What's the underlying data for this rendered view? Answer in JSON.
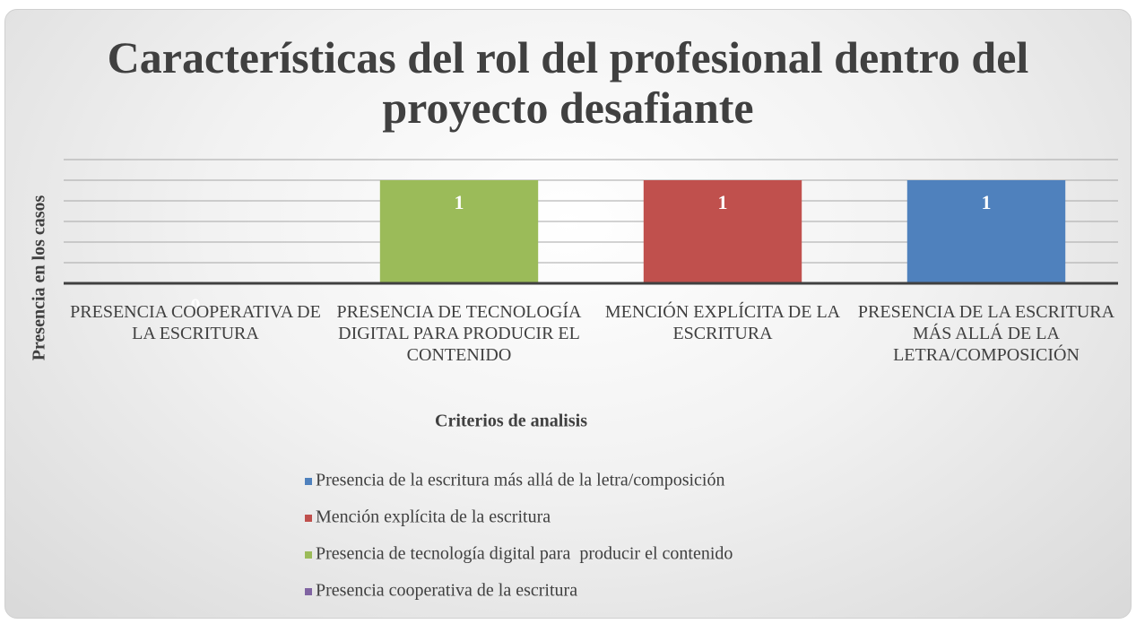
{
  "chart_data": {
    "type": "bar",
    "title": "Características del rol del profesional dentro del proyecto desafiante",
    "x_label": "Criterios de analisis",
    "y_label": "Presencia en los casos",
    "categories": [
      "PRESENCIA COOPERATIVA DE LA ESCRITURA",
      "PRESENCIA DE TECNOLOGÍA DIGITAL PARA  PRODUCIR EL CONTENIDO",
      "MENCIÓN EXPLÍCITA DE LA ESCRITURA",
      "PRESENCIA DE LA ESCRITURA MÁS ALLÁ DE LA LETRA/COMPOSICIÓN"
    ],
    "series": [
      {
        "name": "Presencia cooperativa de la escritura",
        "color": "#8064a2",
        "values": [
          0,
          null,
          null,
          null
        ]
      },
      {
        "name": "Presencia de tecnología digital para  producir el contenido",
        "color": "#9bbb59",
        "values": [
          null,
          1,
          null,
          null
        ]
      },
      {
        "name": "Mención explícita de la escritura",
        "color": "#c0504d",
        "values": [
          null,
          null,
          1,
          null
        ]
      },
      {
        "name": "Presencia de la escritura más allá de la letra/composición",
        "color": "#4f81bd",
        "values": [
          null,
          null,
          null,
          1
        ]
      }
    ],
    "ylim": [
      0,
      1.2
    ],
    "yticks": [
      0,
      0.2,
      0.4,
      0.6,
      0.8,
      1,
      1.2
    ],
    "grid": true,
    "legend": "bottom"
  }
}
